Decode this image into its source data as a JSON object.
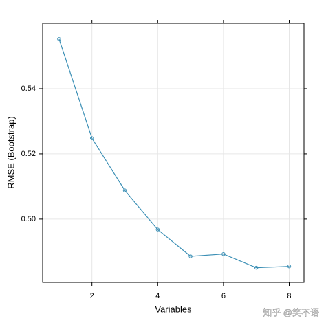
{
  "chart_data": {
    "type": "line",
    "x_label": "Variables",
    "y_label": "RMSE (Bootstrap)",
    "x": [
      1,
      2,
      3,
      4,
      5,
      6,
      7,
      8
    ],
    "series": [
      {
        "name": "RMSE",
        "color": "#3b8fb5",
        "values": [
          0.5552,
          0.5248,
          0.5088,
          0.4968,
          0.4886,
          0.4893,
          0.4851,
          0.4855
        ]
      }
    ],
    "xlim": [
      0.5,
      8.45
    ],
    "ylim": [
      0.4806,
      0.56
    ],
    "xticks": [
      2,
      4,
      6,
      8
    ],
    "yticks": [
      {
        "value": 0.5,
        "label": "0.50"
      },
      0.52,
      0.54
    ],
    "grid": true,
    "watermark": "知乎 @笑不语"
  }
}
